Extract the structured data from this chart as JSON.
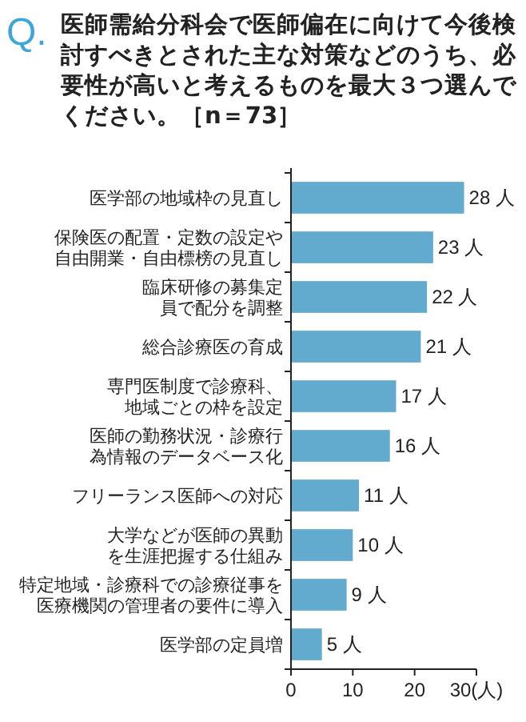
{
  "chart_data": {
    "type": "bar",
    "orientation": "horizontal",
    "title": "Q. 医師需給分科会で医師偏在に向けて今後検討すべきとされた主な対策などのうち、必要性が高いと考えるものを最大３つ選んでください。［n＝73］",
    "categories": [
      "医学部の地域枠の見直し",
      "保険医の配置・定数の設定や自由開業・自由標榜の見直し",
      "臨床研修の募集定員で配分を調整",
      "総合診療医の育成",
      "専門医制度で診療科、地域ごとの枠を設定",
      "医師の勤務状況・診療行為情報のデータベース化",
      "フリーランス医師への対応",
      "大学などが医師の異動を生涯把握する仕組み",
      "特定地域・診療科での診療従事を医療機関の管理者の要件に導入",
      "医学部の定員増"
    ],
    "values": [
      28,
      23,
      22,
      21,
      17,
      16,
      11,
      10,
      9,
      5
    ],
    "value_labels": [
      "28 人",
      "23 人",
      "22 人",
      "21 人",
      "17 人",
      "16 人",
      "11 人",
      "10 人",
      "9 人",
      "5 人"
    ],
    "color": "#62abcf",
    "xlim": [
      0,
      30
    ],
    "xticks": [
      0,
      10,
      20,
      {
        "value": 30,
        "label": "30(人)"
      }
    ],
    "grid": false
  }
}
